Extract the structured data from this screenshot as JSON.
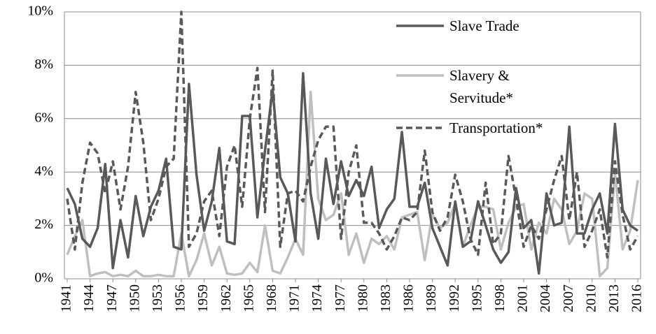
{
  "chart_data": {
    "type": "line",
    "x": [
      1941,
      1942,
      1943,
      1944,
      1945,
      1946,
      1947,
      1948,
      1949,
      1950,
      1951,
      1952,
      1953,
      1954,
      1955,
      1956,
      1957,
      1958,
      1959,
      1960,
      1961,
      1962,
      1963,
      1964,
      1965,
      1966,
      1967,
      1968,
      1969,
      1970,
      1971,
      1972,
      1973,
      1974,
      1975,
      1976,
      1977,
      1978,
      1979,
      1980,
      1981,
      1982,
      1983,
      1984,
      1985,
      1986,
      1987,
      1988,
      1989,
      1990,
      1991,
      1992,
      1993,
      1994,
      1995,
      1996,
      1997,
      1998,
      1999,
      2000,
      2001,
      2002,
      2003,
      2004,
      2005,
      2006,
      2007,
      2008,
      2009,
      2010,
      2011,
      2012,
      2013,
      2014,
      2015,
      2016
    ],
    "xlim": [
      1941,
      2016
    ],
    "xticks": [
      1941,
      1944,
      1947,
      1950,
      1953,
      1956,
      1959,
      1962,
      1965,
      1968,
      1971,
      1974,
      1977,
      1980,
      1983,
      1986,
      1989,
      1992,
      1995,
      1998,
      2001,
      2004,
      2007,
      2010,
      2013,
      2016
    ],
    "ylim": [
      0,
      10
    ],
    "yticks": [
      {
        "value": 0,
        "label": "0%"
      },
      {
        "value": 2,
        "label": "2%"
      },
      {
        "value": 4,
        "label": "4%"
      },
      {
        "value": 6,
        "label": "6%"
      },
      {
        "value": 8,
        "label": "8%"
      },
      {
        "value": 10,
        "label": "10%"
      }
    ],
    "grid": true,
    "series": [
      {
        "name": "Slave Trade",
        "color": "#595959",
        "dash": "solid",
        "values": [
          3.4,
          2.8,
          1.5,
          1.2,
          1.9,
          4.3,
          0.4,
          2.2,
          0.8,
          3.1,
          1.6,
          2.7,
          3.3,
          4.5,
          1.2,
          1.1,
          7.3,
          3.9,
          1.8,
          2.9,
          4.9,
          1.4,
          1.3,
          6.1,
          6.1,
          2.3,
          4.8,
          7.1,
          3.8,
          3.2,
          1.4,
          7.7,
          3.2,
          1.5,
          4.5,
          2.8,
          4.4,
          3.1,
          3.7,
          3.1,
          4.2,
          1.9,
          2.6,
          3.0,
          5.5,
          2.7,
          2.7,
          3.6,
          1.9,
          1.2,
          0.5,
          2.9,
          1.2,
          1.4,
          2.9,
          2.0,
          1.1,
          0.6,
          1.0,
          3.4,
          1.9,
          2.2,
          0.2,
          3.2,
          2.0,
          2.1,
          5.7,
          1.7,
          1.7,
          2.6,
          3.2,
          1.7,
          5.8,
          2.6,
          2.0,
          1.8
        ]
      },
      {
        "name": "Slavery & Servitude*",
        "color": "#bfbfbf",
        "dash": "solid",
        "values": [
          0.9,
          1.6,
          2.2,
          0.1,
          0.2,
          0.25,
          0.1,
          0.15,
          0.1,
          0.3,
          0.1,
          0.1,
          0.15,
          0.1,
          0.1,
          1.7,
          0.1,
          0.7,
          1.7,
          0.5,
          1.2,
          0.2,
          0.15,
          0.2,
          0.6,
          0.25,
          2.0,
          0.3,
          0.2,
          0.8,
          1.5,
          0.9,
          7.0,
          3.0,
          2.2,
          2.4,
          3.2,
          0.9,
          1.7,
          0.6,
          1.5,
          1.3,
          1.6,
          1.1,
          2.3,
          2.4,
          2.5,
          0.7,
          2.4,
          1.9,
          2.1,
          2.8,
          1.2,
          2.0,
          2.7,
          2.7,
          2.6,
          1.1,
          2.1,
          2.7,
          2.8,
          1.1,
          2.1,
          1.7,
          3.0,
          2.6,
          1.3,
          1.8,
          3.2,
          3.0,
          0.1,
          0.4,
          4.0,
          1.1,
          1.8,
          3.7
        ]
      },
      {
        "name": "Transportation*",
        "color": "#595959",
        "dash": "dashed",
        "values": [
          3.0,
          1.1,
          3.6,
          5.1,
          4.7,
          3.2,
          4.4,
          2.6,
          4.2,
          7.0,
          5.1,
          2.2,
          3.0,
          4.2,
          4.5,
          10.0,
          1.2,
          1.7,
          2.9,
          3.3,
          1.6,
          4.2,
          5.0,
          2.7,
          6.0,
          7.9,
          2.5,
          7.8,
          1.2,
          3.2,
          3.3,
          2.9,
          4.2,
          5.2,
          5.7,
          5.7,
          1.5,
          4.0,
          5.0,
          2.1,
          2.1,
          1.7,
          1.1,
          1.6,
          2.3,
          2.2,
          2.5,
          4.8,
          2.5,
          1.8,
          2.3,
          3.9,
          2.9,
          1.5,
          0.9,
          3.6,
          1.3,
          1.7,
          4.6,
          3.0,
          1.2,
          2.0,
          1.5,
          2.6,
          3.7,
          4.6,
          2.2,
          4.0,
          1.2,
          1.8,
          2.6,
          0.8,
          4.4,
          2.4,
          1.1,
          1.6
        ]
      }
    ]
  }
}
